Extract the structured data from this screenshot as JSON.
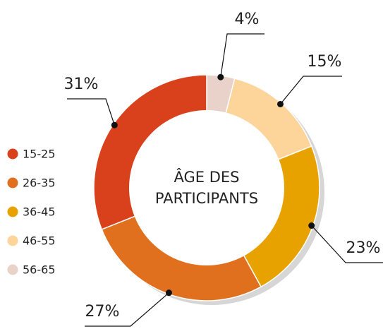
{
  "chart_data": {
    "type": "donut",
    "center_label": [
      "ÂGE DES",
      "PARTICIPANTS"
    ],
    "categories": [
      "15-25",
      "26-35",
      "36-45",
      "46-55",
      "56-65"
    ],
    "values": [
      31,
      27,
      23,
      15,
      4
    ],
    "value_labels": [
      "31%",
      "27%",
      "23%",
      "15%",
      "4%"
    ],
    "colors": [
      "#d9401c",
      "#e0701e",
      "#e8a200",
      "#fdd59a",
      "#e9d2c9"
    ],
    "legend": "left"
  }
}
